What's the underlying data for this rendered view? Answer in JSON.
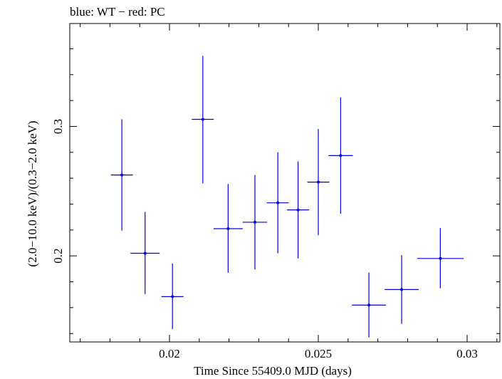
{
  "chart_data": {
    "type": "scatter",
    "title": "blue: WT − red: PC",
    "xlabel": "Time Since 55409.0 MJD (days)",
    "ylabel": "(2.0−10.0 keV)/(0.3−2.0 keV)",
    "xlim": [
      0.01665,
      0.0311
    ],
    "ylim": [
      0.1335,
      0.3795
    ],
    "x_ticks": [
      0.02,
      0.025,
      0.03
    ],
    "x_tick_labels": [
      "0.02",
      "0.025",
      "0.03"
    ],
    "y_ticks": [
      0.2,
      0.3
    ],
    "y_tick_labels": [
      "0.2",
      "0.3"
    ],
    "grid": false,
    "series": [
      {
        "color": "#0000dd",
        "points": [
          {
            "x": 0.0184,
            "xerr": 0.00037,
            "y": 0.2625,
            "ylo": 0.2195,
            "yhi": 0.3055
          },
          {
            "x": 0.01918,
            "xerr": 0.00049,
            "y": 0.202,
            "ylo": 0.1705,
            "yhi": 0.234
          },
          {
            "x": 0.0201,
            "xerr": 0.00037,
            "y": 0.1685,
            "ylo": 0.1435,
            "yhi": 0.194
          },
          {
            "x": 0.02112,
            "xerr": 0.00037,
            "y": 0.3055,
            "ylo": 0.256,
            "yhi": 0.3545
          },
          {
            "x": 0.02197,
            "xerr": 0.00049,
            "y": 0.221,
            "ylo": 0.187,
            "yhi": 0.2555
          },
          {
            "x": 0.02287,
            "xerr": 0.00041,
            "y": 0.226,
            "ylo": 0.1895,
            "yhi": 0.2625
          },
          {
            "x": 0.02364,
            "xerr": 0.00037,
            "y": 0.241,
            "ylo": 0.202,
            "yhi": 0.28
          },
          {
            "x": 0.02432,
            "xerr": 0.00037,
            "y": 0.2355,
            "ylo": 0.198,
            "yhi": 0.273
          },
          {
            "x": 0.025,
            "xerr": 0.00037,
            "y": 0.257,
            "ylo": 0.216,
            "yhi": 0.298
          },
          {
            "x": 0.02575,
            "xerr": 0.00041,
            "y": 0.2775,
            "ylo": 0.2325,
            "yhi": 0.3225
          },
          {
            "x": 0.0267,
            "xerr": 0.00057,
            "y": 0.162,
            "ylo": 0.137,
            "yhi": 0.187
          },
          {
            "x": 0.0278,
            "xerr": 0.00057,
            "y": 0.174,
            "ylo": 0.1475,
            "yhi": 0.2005
          },
          {
            "x": 0.0291,
            "xerr": 0.00078,
            "y": 0.198,
            "ylo": 0.175,
            "yhi": 0.2215
          }
        ]
      }
    ]
  }
}
